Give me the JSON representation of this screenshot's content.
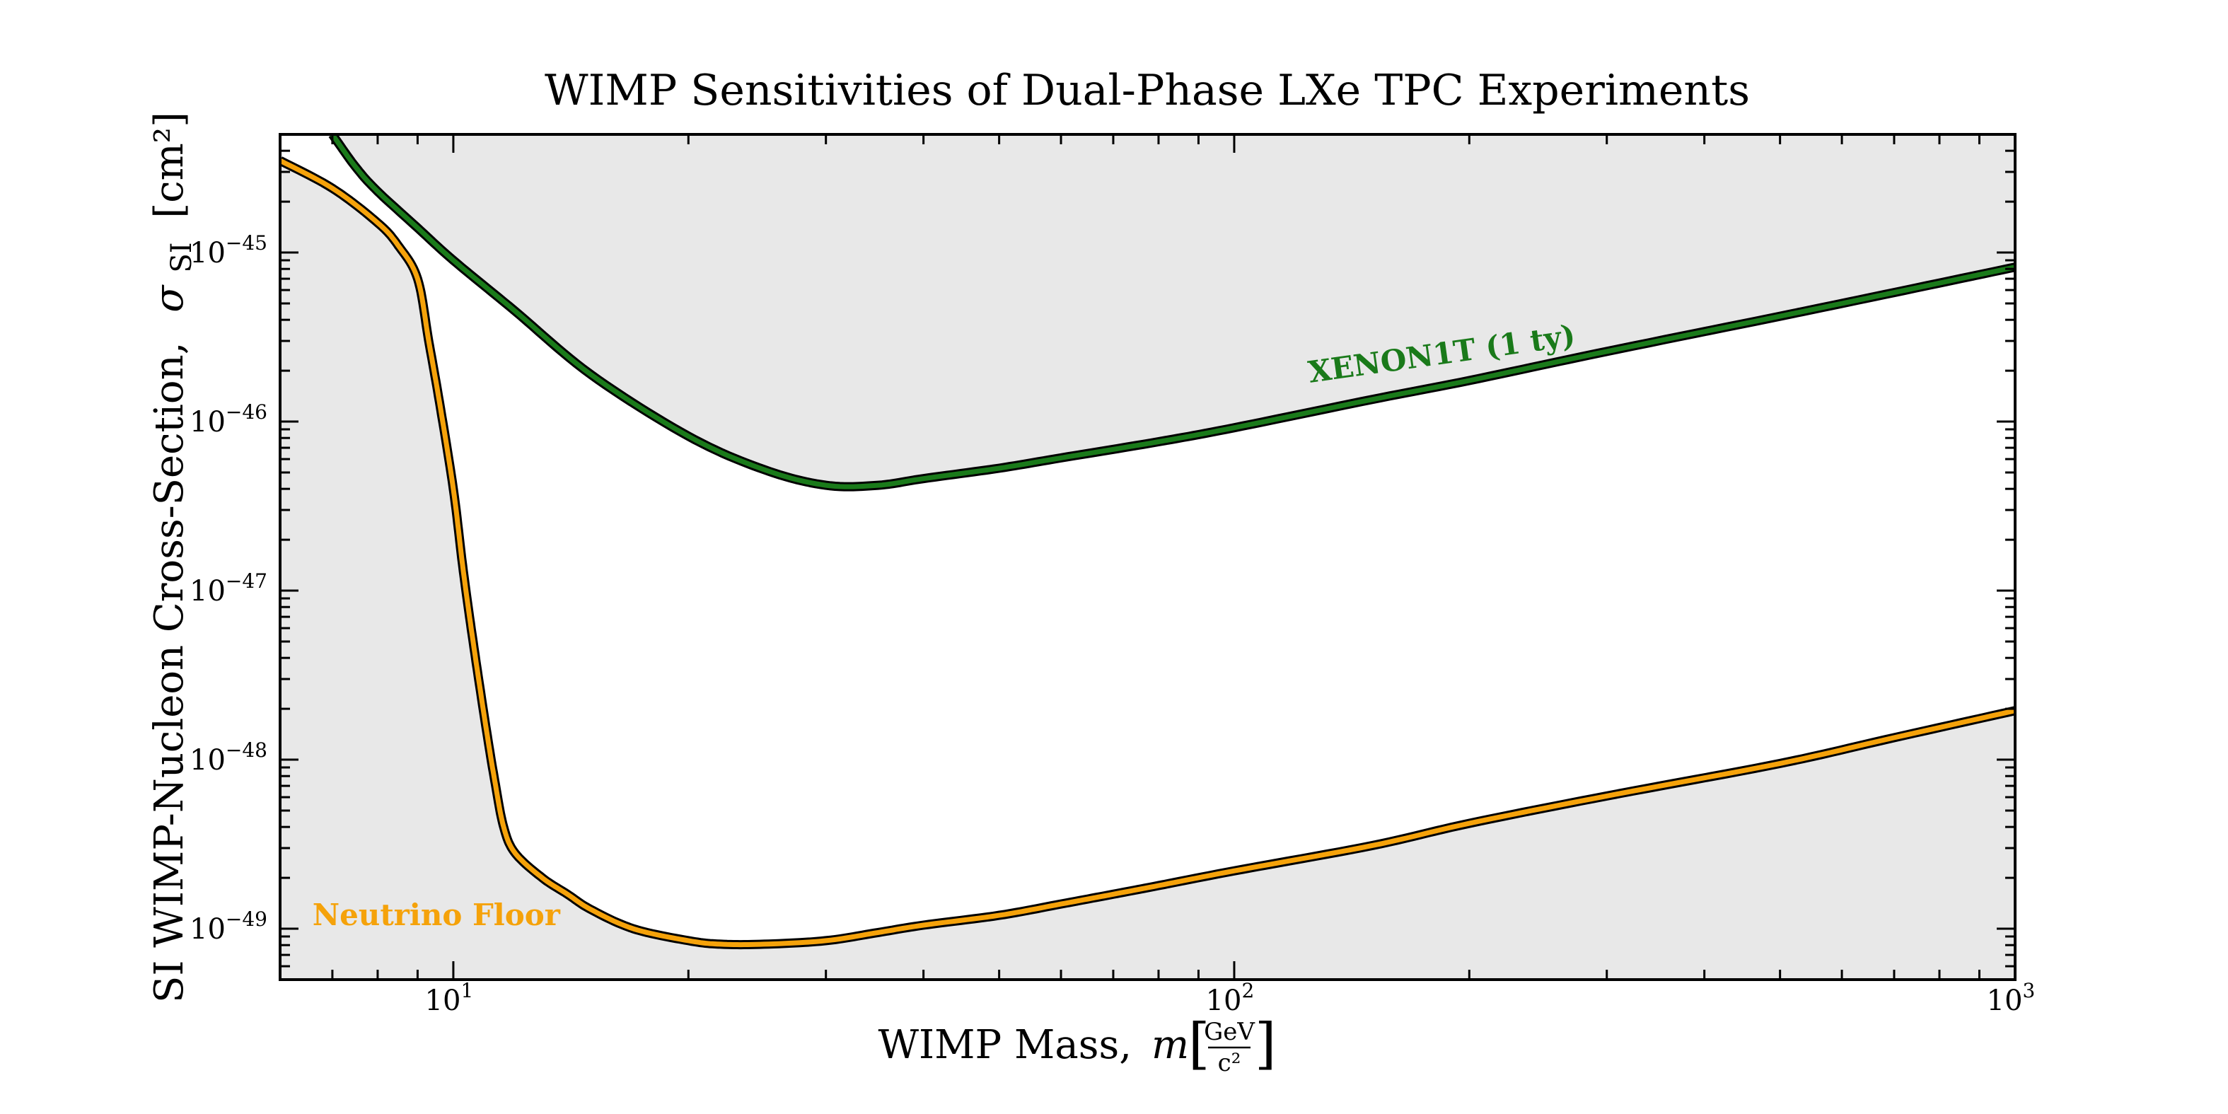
{
  "chart_data": {
    "type": "line",
    "title": "WIMP Sensitivities of Dual-Phase LXe TPC Experiments",
    "xlabel": {
      "text": "WIMP Mass,",
      "symbol": "m",
      "unit_num": "GeV",
      "unit_den": "c²"
    },
    "ylabel": {
      "text": "SI WIMP-Nucleon Cross-Section,",
      "symbol": "σ",
      "subscript": "SI",
      "unit": "[cm²]"
    },
    "x_scale": "log",
    "y_scale": "log",
    "xlim": [
      6,
      1000
    ],
    "ylim": [
      5e-50,
      5e-45
    ],
    "x_ticks": [
      {
        "value": 10,
        "base": "10",
        "exp": "1"
      },
      {
        "value": 100,
        "base": "10",
        "exp": "2"
      },
      {
        "value": 1000,
        "base": "10",
        "exp": "3"
      }
    ],
    "y_ticks": [
      {
        "value": 1e-45,
        "base": "10",
        "exp": "−45"
      },
      {
        "value": 1e-46,
        "base": "10",
        "exp": "−46"
      },
      {
        "value": 1e-47,
        "base": "10",
        "exp": "−47"
      },
      {
        "value": 1e-48,
        "base": "10",
        "exp": "−48"
      },
      {
        "value": 1e-49,
        "base": "10",
        "exp": "−49"
      }
    ],
    "grid": false,
    "colors": {
      "xenon1t": "#1a7a1a",
      "neutrino": "#f5a20a",
      "shade": "#e8e8e8",
      "outline": "#000000"
    },
    "series": [
      {
        "name": "XENON1T (1 ty)",
        "color": "#1a7a1a",
        "shade": "above",
        "x": [
          7,
          7.5,
          8,
          9,
          10,
          12,
          15,
          20,
          25,
          30,
          35,
          40,
          50,
          60,
          80,
          100,
          150,
          200,
          300,
          500,
          700,
          1000
        ],
        "y": [
          5e-45,
          3.2e-45,
          2.3e-45,
          1.4e-45,
          9e-46,
          4.5e-46,
          1.9e-46,
          8.2e-47,
          5.2e-47,
          4.2e-47,
          4.2e-47,
          4.6e-47,
          5.3e-47,
          6.1e-47,
          7.6e-47,
          9.2e-47,
          1.35e-46,
          1.75e-46,
          2.6e-46,
          4.2e-46,
          5.8e-46,
          8.2e-46
        ]
      },
      {
        "name": "Neutrino Floor",
        "color": "#f5a20a",
        "shade": "below",
        "x": [
          6,
          7,
          8,
          8.5,
          9,
          9.3,
          9.6,
          10,
          10.3,
          10.6,
          11,
          11.3,
          11.6,
          12,
          13,
          14,
          15,
          17,
          20,
          22,
          25,
          30,
          35,
          40,
          50,
          60,
          70,
          80,
          100,
          150,
          200,
          300,
          500,
          700,
          1000
        ],
        "y": [
          3.5e-45,
          2.4e-45,
          1.5e-45,
          1.1e-45,
          7e-46,
          3e-46,
          1.3e-46,
          4e-47,
          1.3e-47,
          5e-48,
          1.6e-48,
          7.5e-49,
          4e-49,
          2.8e-49,
          2e-49,
          1.6e-49,
          1.3e-49,
          1e-49,
          8.5e-50,
          8.1e-50,
          8.1e-50,
          8.5e-50,
          9.5e-50,
          1.05e-49,
          1.2e-49,
          1.4e-49,
          1.6e-49,
          1.8e-49,
          2.2e-49,
          3.1e-49,
          4.2e-49,
          6.1e-49,
          9.5e-49,
          1.35e-48,
          1.95e-48
        ]
      }
    ],
    "annotations": [
      {
        "text": "XENON1T (1 ty)",
        "x": 125,
        "y": 1.7e-46,
        "color": "#1a7a1a",
        "rotation_deg": -8
      },
      {
        "text": "Neutrino Floor",
        "x": 6.6,
        "y": 1.05e-49,
        "color": "#f5a20a"
      }
    ]
  }
}
